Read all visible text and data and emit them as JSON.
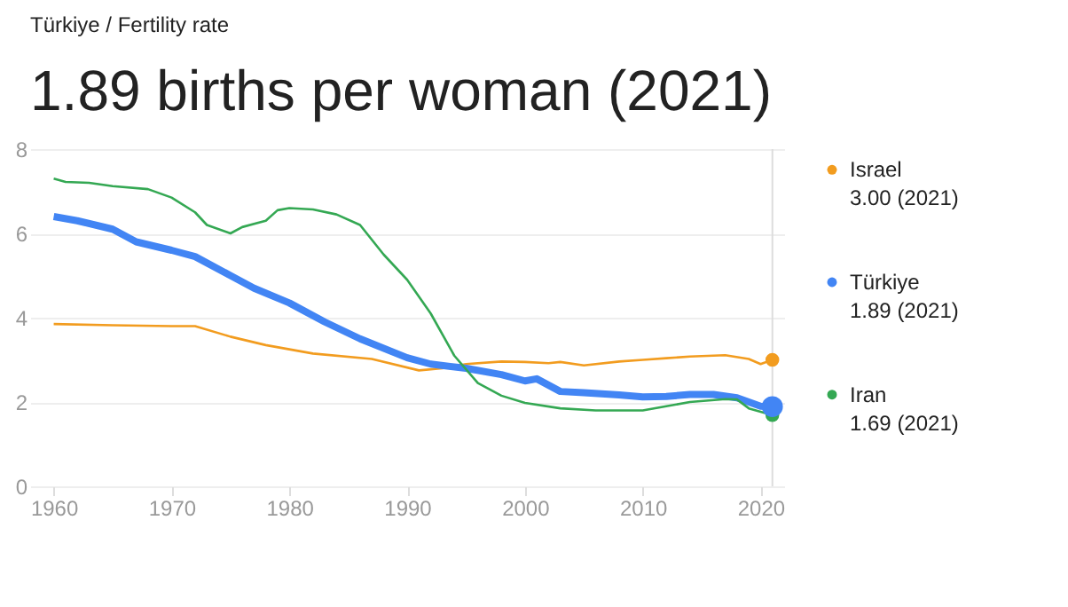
{
  "chart_data": {
    "type": "line",
    "subtitle": "Türkiye / Fertility rate",
    "title": "1.89 births per woman (2021)",
    "xlim": [
      1958,
      2022
    ],
    "xticks": [
      1960,
      1970,
      1980,
      1990,
      2000,
      2010,
      2020
    ],
    "ylim": [
      0,
      8
    ],
    "yticks": [
      0,
      2,
      4,
      6,
      8
    ],
    "grid": "y",
    "legend": "right",
    "series": [
      {
        "name": "Israel",
        "color": "#f29c1f",
        "x": [
          1960,
          1965,
          1970,
          1972,
          1975,
          1978,
          1982,
          1987,
          1991,
          1993,
          1995,
          1998,
          2000,
          2002,
          2003,
          2005,
          2008,
          2010,
          2012,
          2014,
          2017,
          2019,
          2020,
          2021
        ],
        "values": [
          3.85,
          3.82,
          3.8,
          3.8,
          3.55,
          3.35,
          3.15,
          3.02,
          2.75,
          2.8,
          2.9,
          2.96,
          2.95,
          2.92,
          2.95,
          2.87,
          2.96,
          3.0,
          3.04,
          3.08,
          3.11,
          3.02,
          2.9,
          3.0
        ]
      },
      {
        "name": "Türkiye",
        "color": "#4285f4",
        "x": [
          1960,
          1962,
          1965,
          1967,
          1970,
          1972,
          1975,
          1977,
          1980,
          1983,
          1986,
          1990,
          1992,
          1995,
          1998,
          2000,
          2001,
          2003,
          2005,
          2008,
          2010,
          2012,
          2014,
          2016,
          2018,
          2020,
          2021
        ],
        "values": [
          6.4,
          6.3,
          6.1,
          5.8,
          5.6,
          5.45,
          5.0,
          4.7,
          4.35,
          3.9,
          3.5,
          3.05,
          2.9,
          2.8,
          2.65,
          2.5,
          2.55,
          2.25,
          2.22,
          2.17,
          2.12,
          2.13,
          2.18,
          2.18,
          2.1,
          1.9,
          1.89
        ]
      },
      {
        "name": "Iran",
        "color": "#34a853",
        "x": [
          1960,
          1961,
          1963,
          1965,
          1968,
          1970,
          1972,
          1973,
          1975,
          1976,
          1978,
          1979,
          1980,
          1982,
          1984,
          1986,
          1988,
          1990,
          1992,
          1994,
          1996,
          1998,
          2000,
          2003,
          2006,
          2010,
          2012,
          2014,
          2017,
          2018,
          2019,
          2021
        ],
        "values": [
          7.3,
          7.22,
          7.2,
          7.12,
          7.05,
          6.85,
          6.5,
          6.2,
          6.0,
          6.15,
          6.3,
          6.55,
          6.6,
          6.57,
          6.45,
          6.2,
          5.5,
          4.9,
          4.1,
          3.1,
          2.45,
          2.15,
          1.98,
          1.85,
          1.8,
          1.8,
          1.9,
          2.0,
          2.07,
          2.06,
          1.85,
          1.69
        ]
      },
      {
        "type": "scatter",
        "color": "#f29c1f",
        "x": [
          2021
        ],
        "values": [
          3.0
        ]
      },
      {
        "type": "scatter",
        "color": "#34a853",
        "x": [
          2021
        ],
        "values": [
          1.69
        ]
      },
      {
        "type": "scatter",
        "color": "#4285f4",
        "x": [
          2021
        ],
        "values": [
          1.89
        ]
      }
    ],
    "ref_lines": [
      {
        "axis": "x",
        "value": 2021,
        "color": "#dddddd"
      }
    ],
    "annotations": [
      "3.00 (2021)",
      "1.89 (2021)",
      "1.69 (2021)"
    ]
  }
}
